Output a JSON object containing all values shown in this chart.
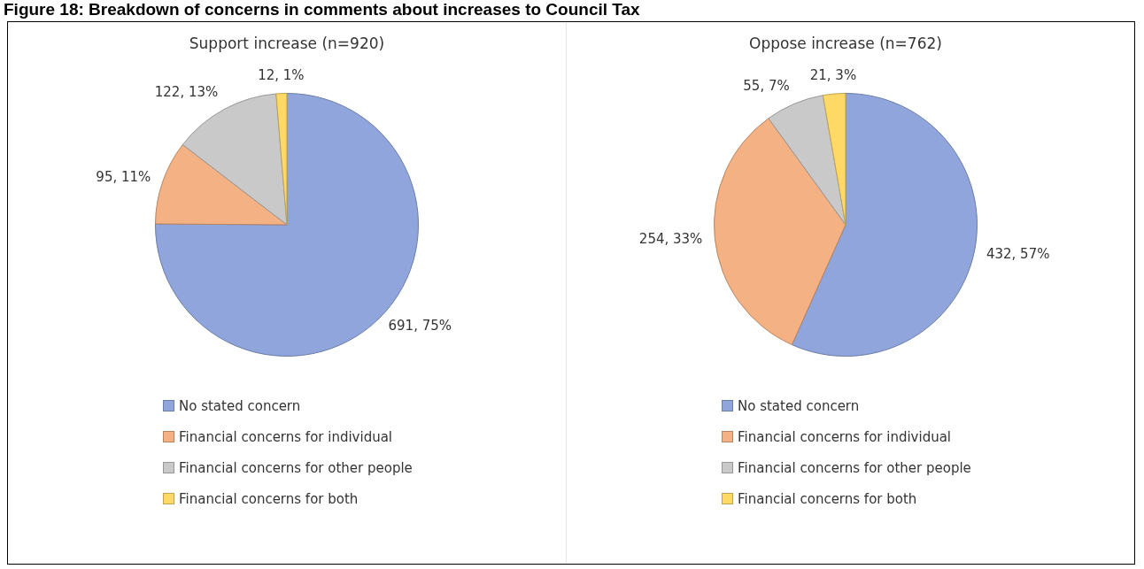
{
  "chart_data": [
    {
      "type": "pie",
      "title": "Support increase (n=920)",
      "annotations": [
        "Figure 18: Breakdown of concerns in comments about increases to Council Tax"
      ],
      "categories": [
        "No stated concern",
        "Financial concerns for individual",
        "Financial concerns for other people",
        "Financial concerns for both"
      ],
      "values": [
        691,
        95,
        122,
        12
      ],
      "value_labels": [
        "691, 75%",
        "95, 11%",
        "122, 13%",
        "12, 1%"
      ],
      "colors": [
        "#8fa5dc",
        "#f4b183",
        "#c9c9c9",
        "#ffd966"
      ],
      "legend": "bottom"
    },
    {
      "type": "pie",
      "title": "Oppose increase (n=762)",
      "categories": [
        "No stated concern",
        "Financial concerns for individual",
        "Financial concerns for other people",
        "Financial concerns for both"
      ],
      "values": [
        432,
        254,
        55,
        21
      ],
      "value_labels": [
        "432, 57%",
        "254, 33%",
        "55, 7%",
        "21, 3%"
      ],
      "colors": [
        "#8fa5dc",
        "#f4b183",
        "#c9c9c9",
        "#ffd966"
      ],
      "legend": "bottom"
    }
  ]
}
